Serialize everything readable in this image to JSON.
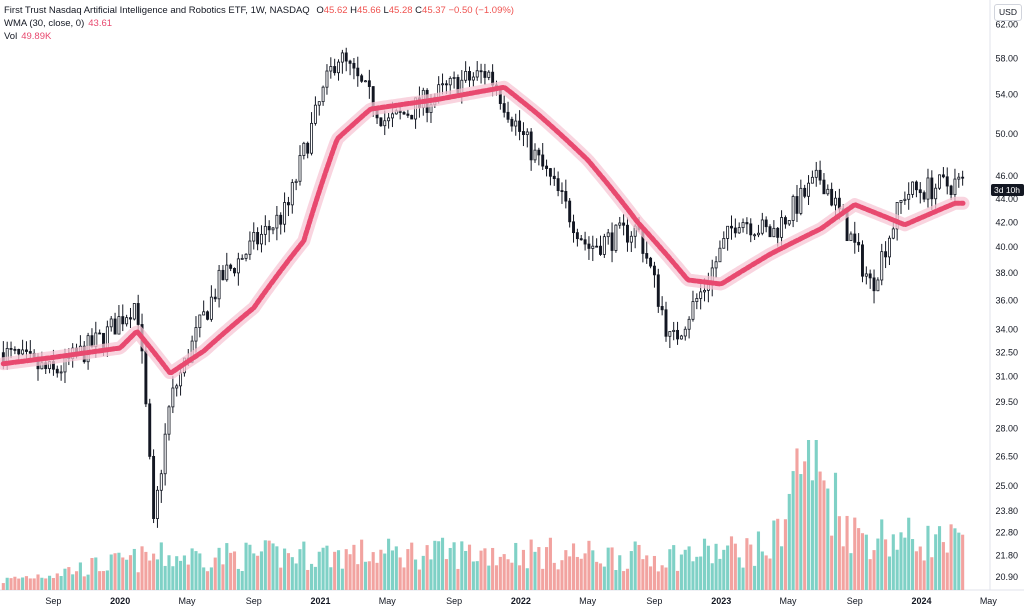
{
  "legend": {
    "title": "First Trust Nasdaq Artificial Intelligence and Robotics ETF, 1W, NASDAQ",
    "o_label": "O",
    "o": "45.62",
    "h_label": "H",
    "h": "45.66",
    "l_label": "L",
    "l": "45.28",
    "c_label": "C",
    "c": "45.37",
    "change": "−0.50 (−1.09%)",
    "wma_label": "WMA (30, close, 0)",
    "wma_value": "43.61",
    "vol_label": "Vol",
    "vol_value": "49.89K"
  },
  "currency": "USD",
  "price_tag": "3d 10h",
  "colors": {
    "up_candle": "#131722",
    "down_candle": "#131722",
    "wma": "#e8496f",
    "wma_glow": "#f7c6d4",
    "vol_up": "#7fd1c6",
    "vol_down": "#f2a3a0",
    "axis_text": "#131722",
    "border": "#e0e3eb"
  },
  "chart_data": {
    "type": "candlestick",
    "y_scale": "log",
    "y_ticks": [
      "62.00",
      "58.00",
      "54.00",
      "50.00",
      "46.00",
      "44.00",
      "42.00",
      "40.00",
      "38.00",
      "36.00",
      "34.00",
      "32.50",
      "31.00",
      "29.50",
      "28.00",
      "26.50",
      "25.00",
      "23.80",
      "22.80",
      "21.80",
      "20.90"
    ],
    "x_ticks": [
      "Sep",
      "2020",
      "May",
      "Sep",
      "2021",
      "May",
      "Sep",
      "2022",
      "May",
      "Sep",
      "2023",
      "May",
      "Sep",
      "2024",
      "May"
    ],
    "x_range": [
      "2019-06",
      "2024-05"
    ],
    "ylim": [
      20.5,
      63.5
    ],
    "wma_keypoints": [
      {
        "date": "2019-06",
        "value": 31.8
      },
      {
        "date": "2019-09",
        "value": 32.2
      },
      {
        "date": "2020-01",
        "value": 32.8
      },
      {
        "date": "2020-02",
        "value": 33.9
      },
      {
        "date": "2020-04",
        "value": 31.2
      },
      {
        "date": "2020-06",
        "value": 32.6
      },
      {
        "date": "2020-09",
        "value": 35.5
      },
      {
        "date": "2020-12",
        "value": 40.5
      },
      {
        "date": "2021-02",
        "value": 49.5
      },
      {
        "date": "2021-04",
        "value": 52.5
      },
      {
        "date": "2021-08",
        "value": 53.5
      },
      {
        "date": "2021-12",
        "value": 54.8
      },
      {
        "date": "2022-02",
        "value": 52.0
      },
      {
        "date": "2022-05",
        "value": 47.5
      },
      {
        "date": "2022-08",
        "value": 42.0
      },
      {
        "date": "2022-11",
        "value": 37.5
      },
      {
        "date": "2023-01",
        "value": 37.2
      },
      {
        "date": "2023-04",
        "value": 39.5
      },
      {
        "date": "2023-07",
        "value": 41.5
      },
      {
        "date": "2023-09",
        "value": 43.5
      },
      {
        "date": "2023-12",
        "value": 41.8
      },
      {
        "date": "2024-03",
        "value": 43.61
      }
    ],
    "close_keypoints": [
      {
        "date": "2019-06",
        "value": 32.5
      },
      {
        "date": "2019-09",
        "value": 31.2
      },
      {
        "date": "2019-12",
        "value": 33.5
      },
      {
        "date": "2020-02",
        "value": 36.0
      },
      {
        "date": "2020-03",
        "value": 23.0
      },
      {
        "date": "2020-04",
        "value": 29.5
      },
      {
        "date": "2020-07",
        "value": 37.5
      },
      {
        "date": "2020-11",
        "value": 43.0
      },
      {
        "date": "2021-02",
        "value": 58.5
      },
      {
        "date": "2021-05",
        "value": 51.0
      },
      {
        "date": "2021-09",
        "value": 55.0
      },
      {
        "date": "2021-11",
        "value": 56.5
      },
      {
        "date": "2022-01",
        "value": 50.0
      },
      {
        "date": "2022-05",
        "value": 40.0
      },
      {
        "date": "2022-08",
        "value": 41.5
      },
      {
        "date": "2022-10",
        "value": 33.0
      },
      {
        "date": "2022-12",
        "value": 37.0
      },
      {
        "date": "2023-02",
        "value": 42.5
      },
      {
        "date": "2023-04",
        "value": 41.0
      },
      {
        "date": "2023-07",
        "value": 46.0
      },
      {
        "date": "2023-10",
        "value": 37.0
      },
      {
        "date": "2023-12",
        "value": 44.5
      },
      {
        "date": "2024-03",
        "value": 45.37
      }
    ],
    "volume_keypoints_k": [
      {
        "date": "2019-06",
        "value": 10
      },
      {
        "date": "2020-03",
        "value": 35
      },
      {
        "date": "2021-02",
        "value": 38
      },
      {
        "date": "2022-01",
        "value": 40
      },
      {
        "date": "2022-09",
        "value": 35
      },
      {
        "date": "2023-04",
        "value": 45
      },
      {
        "date": "2023-06",
        "value": 150
      },
      {
        "date": "2023-09",
        "value": 60
      },
      {
        "date": "2023-12",
        "value": 55
      },
      {
        "date": "2024-03",
        "value": 49.89
      }
    ]
  }
}
